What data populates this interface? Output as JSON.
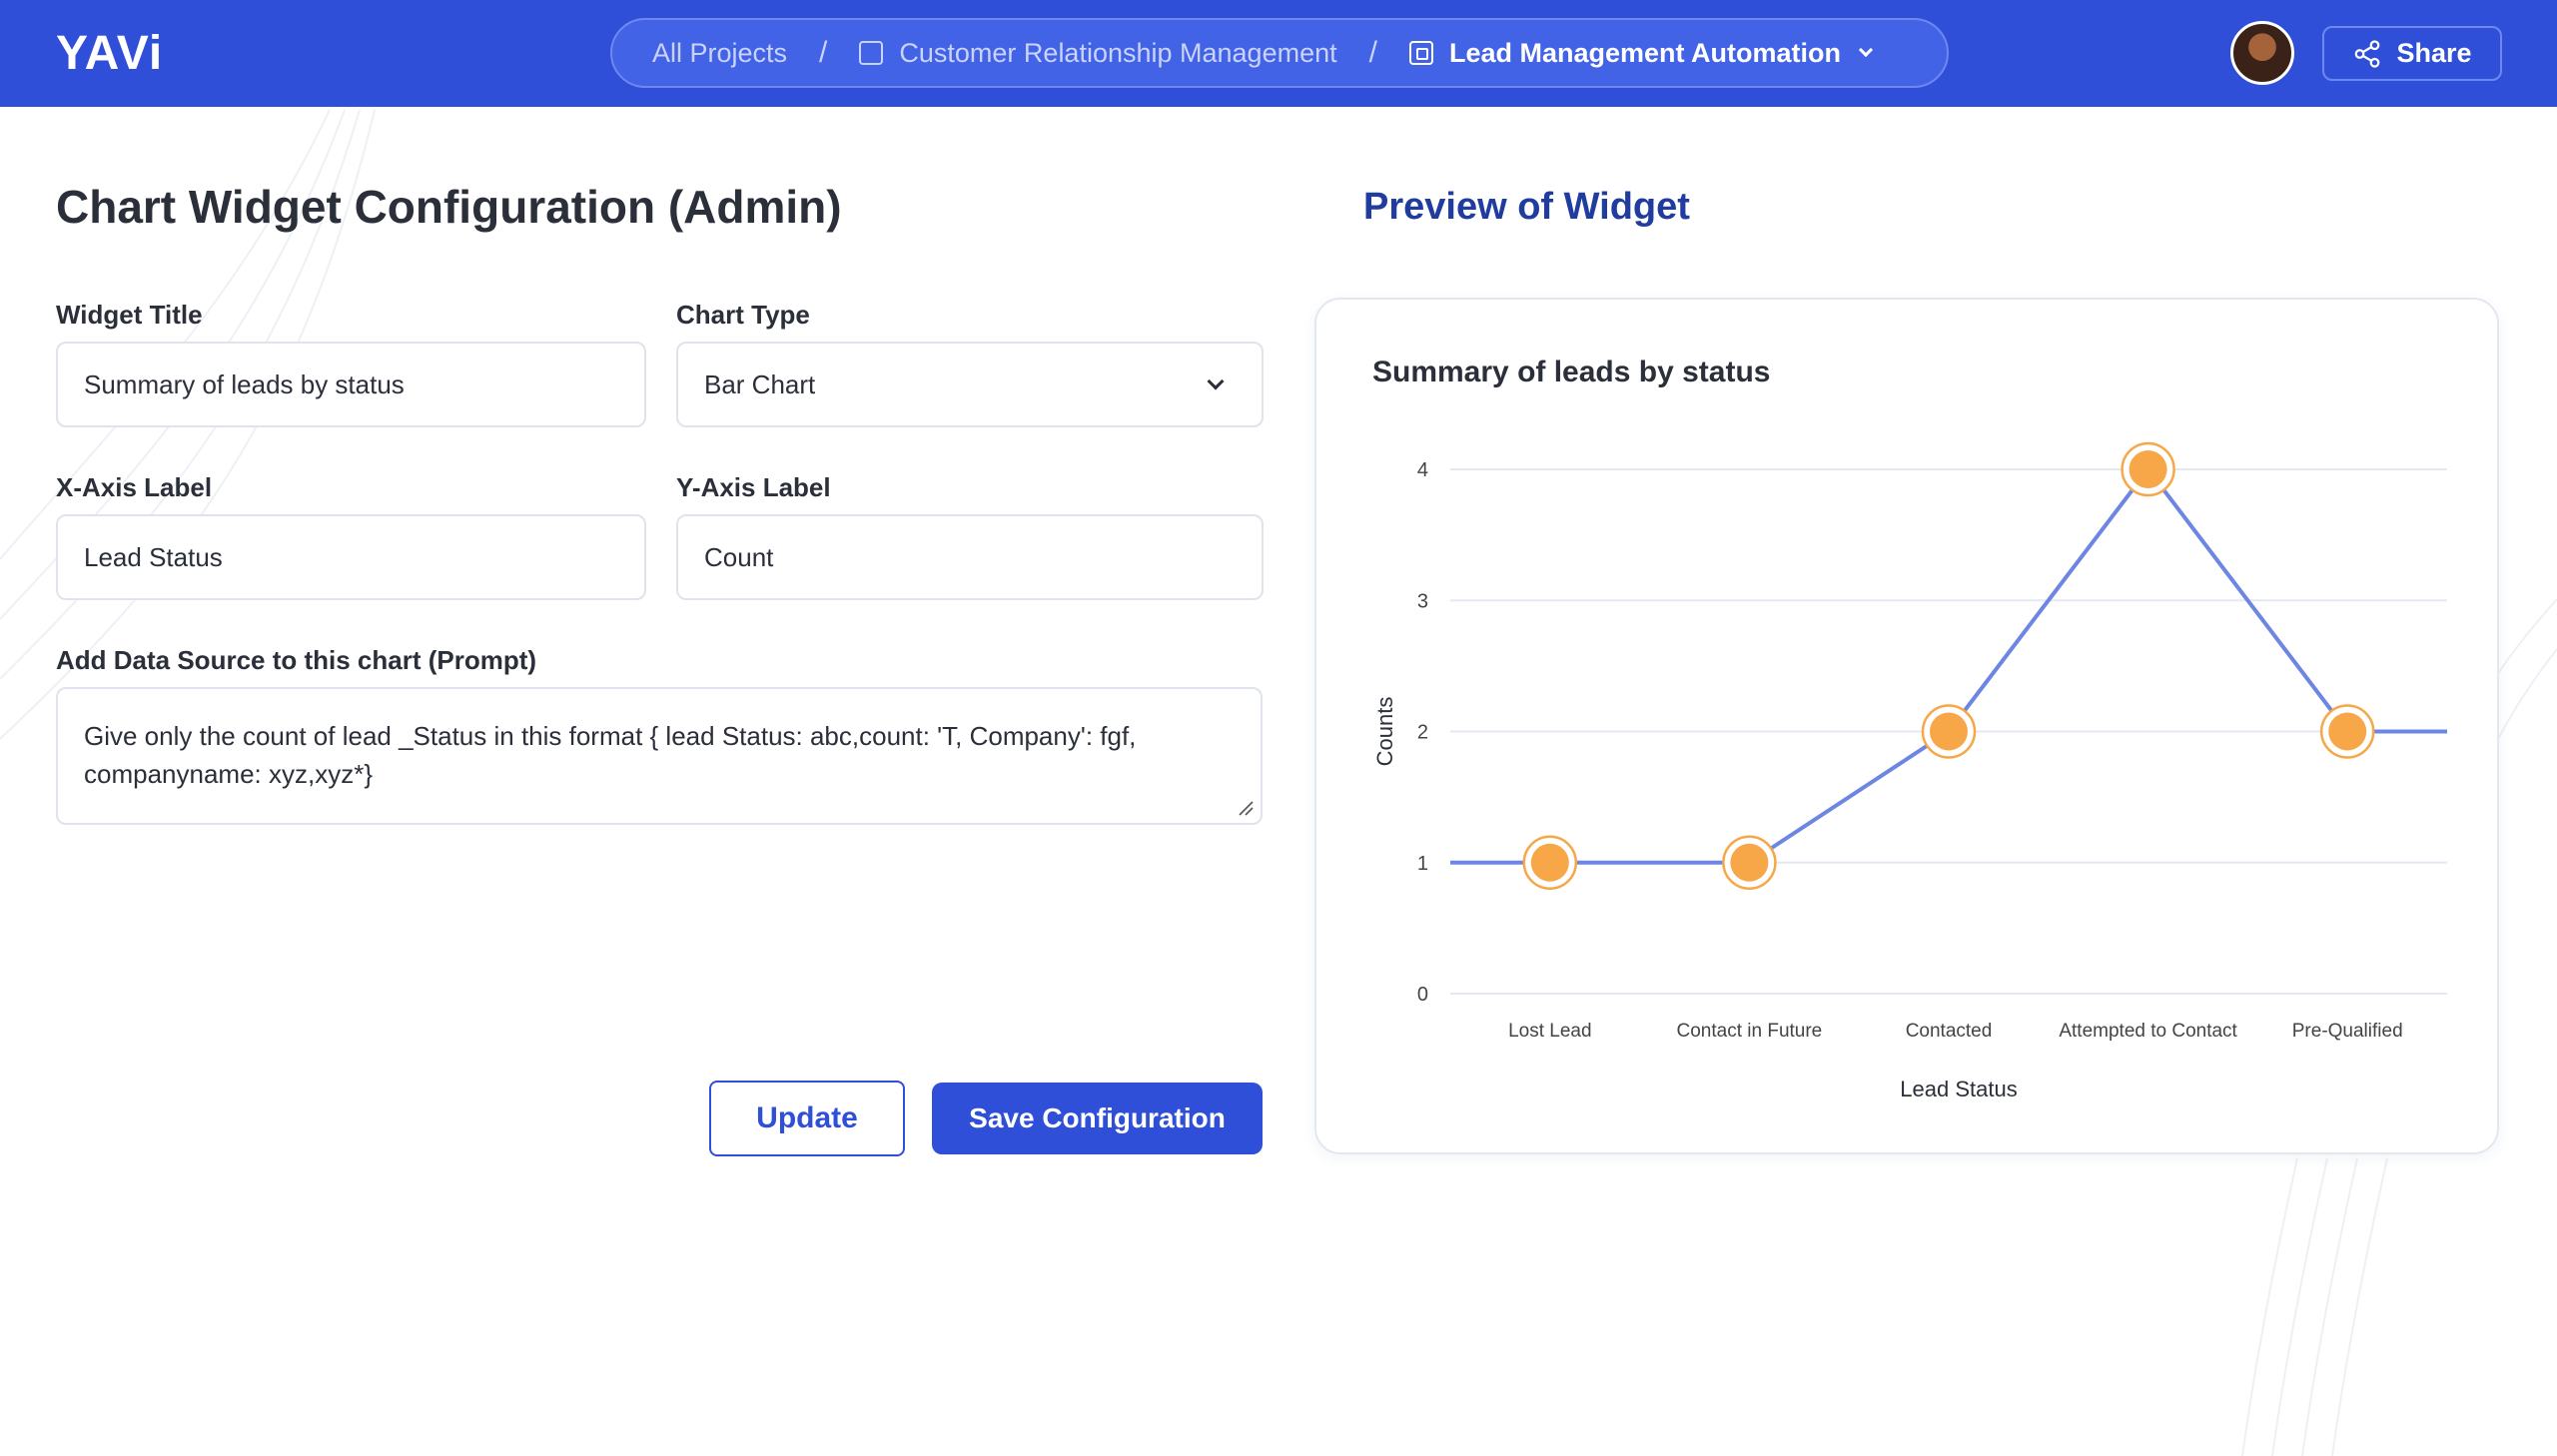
{
  "header": {
    "logo": "YAVi",
    "breadcrumb": [
      {
        "label": "All Projects"
      },
      {
        "label": "Customer Relationship Management"
      },
      {
        "label": "Lead Management Automation"
      }
    ],
    "share_label": "Share"
  },
  "form": {
    "title": "Chart Widget Configuration (Admin)",
    "widget_title_label": "Widget Title",
    "widget_title_value": "Summary of leads by status",
    "chart_type_label": "Chart Type",
    "chart_type_value": "Bar Chart",
    "x_axis_label": "X-Axis Label",
    "x_axis_value": "Lead Status",
    "y_axis_label": "Y-Axis Label",
    "y_axis_value": "Count",
    "prompt_label": "Add Data Source to this chart (Prompt)",
    "prompt_value": "Give only the count of lead _Status in this format { lead Status: abc,count: 'T, Company': fgf, companyname: xyz,xyz*}",
    "update_label": "Update",
    "save_label": "Save Configuration"
  },
  "preview": {
    "title": "Preview of Widget"
  },
  "chart_data": {
    "type": "line",
    "title": "Summary of leads by status",
    "xlabel": "Lead Status",
    "ylabel": "Counts",
    "categories": [
      "Lost Lead",
      "Contact in Future",
      "Contacted",
      "Attempted to Contact",
      "Pre-Qualified"
    ],
    "values": [
      1,
      1,
      2,
      4,
      2
    ],
    "yticks": [
      "0",
      "1",
      "2",
      "3",
      "4"
    ],
    "ylim": [
      0,
      4
    ],
    "grid": true,
    "line_color": "#6d86e3",
    "point_color": "#f7a648"
  },
  "colors": {
    "brand": "#2f4fd8",
    "accent_title": "#1f3c9e"
  }
}
